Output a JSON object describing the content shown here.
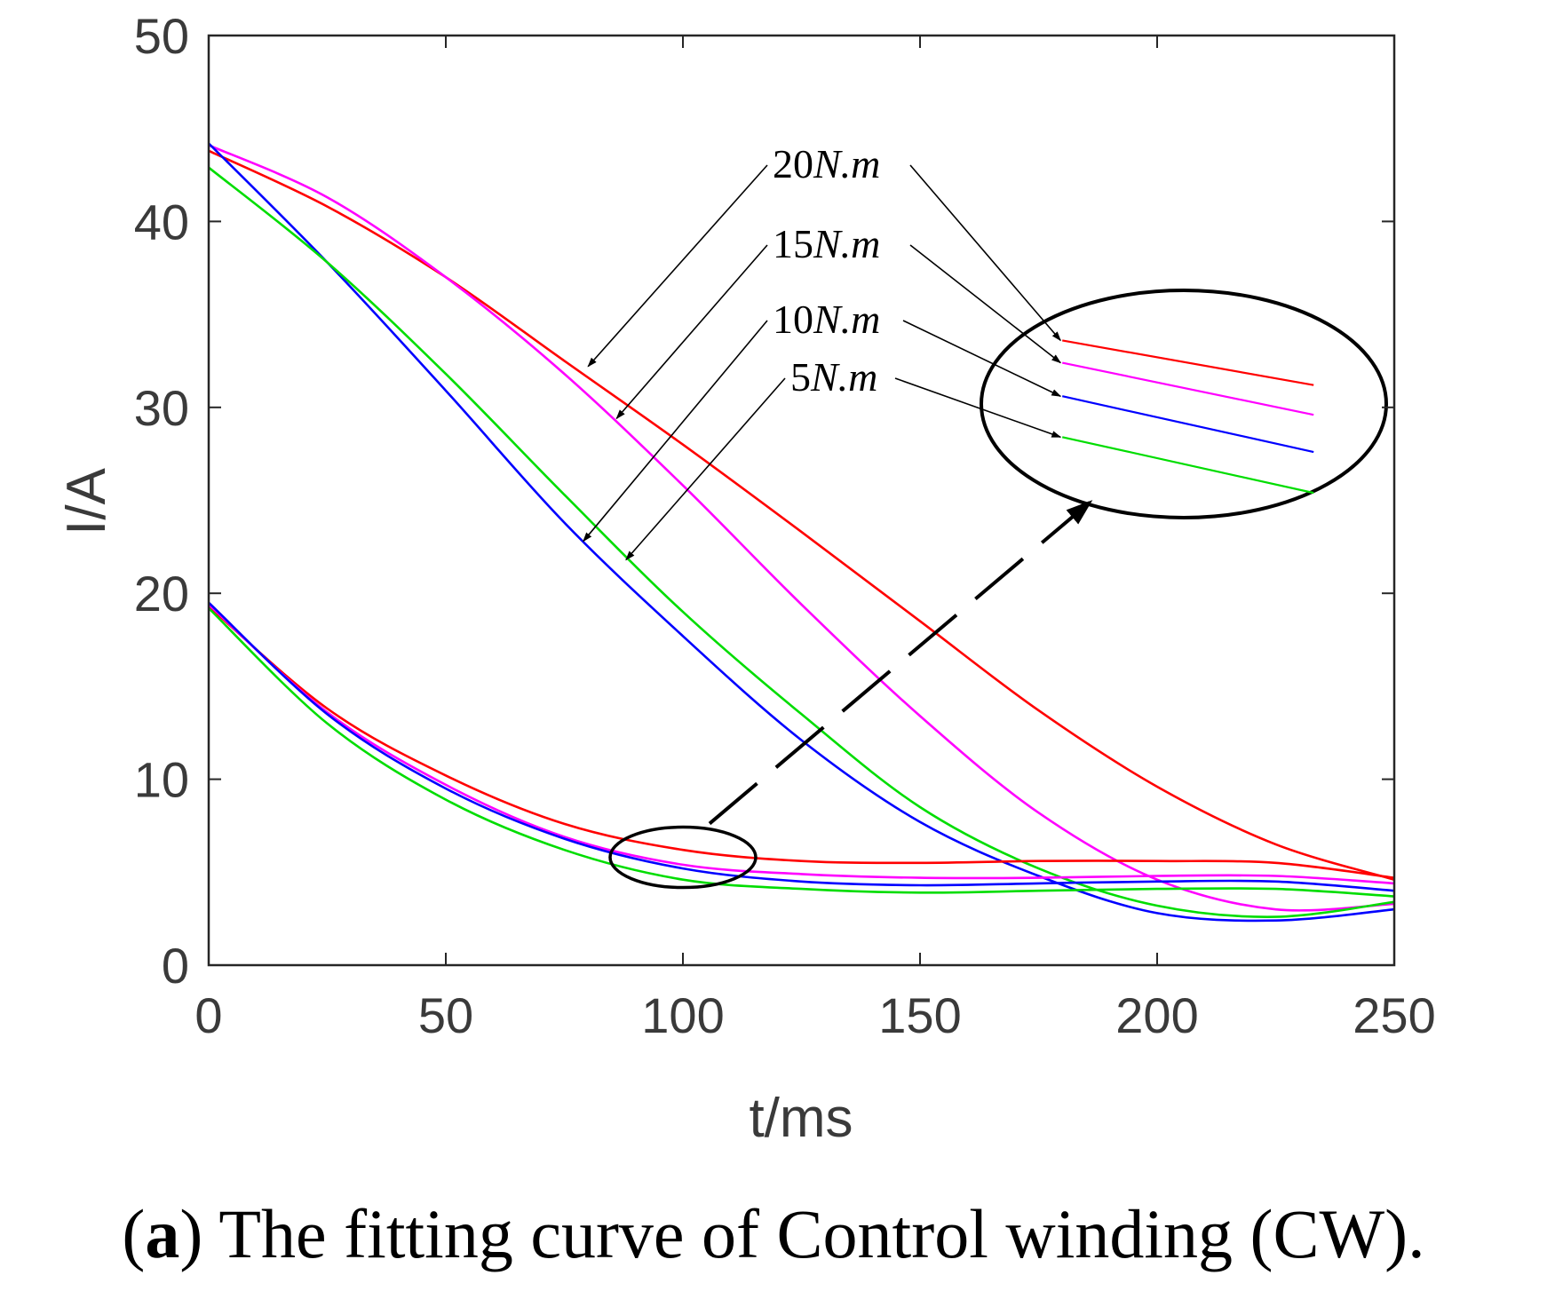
{
  "chart_data": {
    "type": "line",
    "title": "",
    "xlabel": "t/ms",
    "ylabel": "I/A",
    "xlim": [
      0,
      250
    ],
    "ylim": [
      0,
      50
    ],
    "xticks": [
      0,
      50,
      100,
      150,
      200,
      250
    ],
    "yticks": [
      0,
      10,
      20,
      30,
      40,
      50
    ],
    "x": [
      0,
      25,
      50,
      75,
      100,
      125,
      150,
      175,
      200,
      225,
      250
    ],
    "series": [
      {
        "name": "20N.m upper",
        "color": "#ff0000",
        "values": [
          43.8,
          40.8,
          37.0,
          32.5,
          28.0,
          23.3,
          18.5,
          13.7,
          9.6,
          6.5,
          4.6
        ]
      },
      {
        "name": "15N.m upper",
        "color": "#ff00ff",
        "values": [
          44.1,
          41.3,
          37.0,
          31.8,
          25.8,
          19.4,
          13.4,
          8.2,
          4.6,
          3.0,
          3.3
        ]
      },
      {
        "name": "10N.m upper",
        "color": "#0000ff",
        "values": [
          44.2,
          37.8,
          30.9,
          23.8,
          17.7,
          12.1,
          7.7,
          4.8,
          2.8,
          2.4,
          3.0
        ]
      },
      {
        "name": "5N.m upper",
        "color": "#00dd00",
        "values": [
          42.9,
          37.8,
          31.8,
          25.3,
          19.0,
          13.5,
          8.5,
          5.2,
          3.2,
          2.6,
          3.4
        ]
      },
      {
        "name": "20N.m lower",
        "color": "#ff0000",
        "values": [
          19.3,
          13.8,
          10.2,
          7.6,
          6.2,
          5.6,
          5.5,
          5.6,
          5.6,
          5.5,
          4.7
        ]
      },
      {
        "name": "15N.m lower",
        "color": "#ff00ff",
        "values": [
          19.4,
          13.6,
          9.7,
          6.9,
          5.4,
          4.9,
          4.7,
          4.7,
          4.8,
          4.8,
          4.4
        ]
      },
      {
        "name": "10N.m lower",
        "color": "#0000ff",
        "values": [
          19.5,
          13.5,
          9.5,
          6.8,
          5.2,
          4.5,
          4.3,
          4.4,
          4.5,
          4.5,
          4.0
        ]
      },
      {
        "name": "5N.m lower",
        "color": "#00dd00",
        "values": [
          19.2,
          13.0,
          8.9,
          6.2,
          4.6,
          4.1,
          3.9,
          4.0,
          4.1,
          4.1,
          3.7
        ]
      }
    ],
    "annotations": [
      {
        "number": "20",
        "unit": "N.m",
        "color": "#ff0000",
        "tx": 80,
        "ty": 32.2,
        "zy": 33.6
      },
      {
        "number": "15",
        "unit": "N.m",
        "color": "#ff00ff",
        "tx": 86,
        "ty": 29.4,
        "zy": 32.4
      },
      {
        "number": "10",
        "unit": "N.m",
        "color": "#0000ff",
        "tx": 79,
        "ty": 22.8,
        "zy": 30.6
      },
      {
        "number": "5",
        "unit": "N.m",
        "color": "#00dd00",
        "tx": 88,
        "ty": 21.8,
        "zy": 28.4
      }
    ],
    "zoom_lines": [
      {
        "color": "#ff0000",
        "y1": 33.6,
        "y2": 31.2
      },
      {
        "color": "#ff00ff",
        "y1": 32.4,
        "y2": 29.6
      },
      {
        "color": "#0000ff",
        "y1": 30.6,
        "y2": 27.6
      },
      {
        "color": "#00dd00",
        "y1": 28.4,
        "y2": 25.4
      }
    ],
    "zoom_region": {
      "x_from": 100,
      "y_center": 5.8
    }
  },
  "caption": {
    "label": "a",
    "text": "The fitting curve of Control winding (CW)."
  }
}
